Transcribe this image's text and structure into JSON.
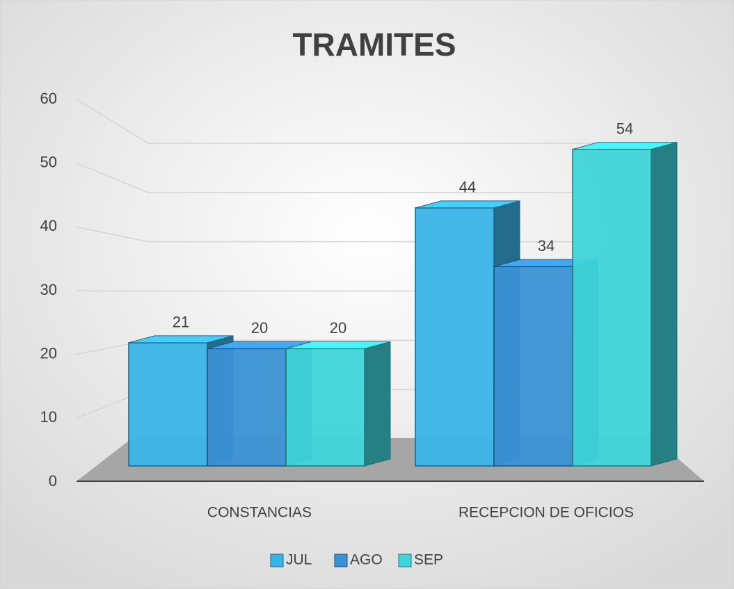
{
  "chart_data": {
    "type": "bar3d",
    "title": "TRAMITES",
    "categories": [
      "CONSTANCIAS",
      "RECEPCION DE OFICIOS"
    ],
    "series": [
      {
        "name": "JUL",
        "color": "#3ab4e8",
        "values": [
          21,
          44
        ]
      },
      {
        "name": "AGO",
        "color": "#3a92d4",
        "values": [
          20,
          34
        ]
      },
      {
        "name": "SEP",
        "color": "#3fd5da",
        "values": [
          20,
          54
        ]
      }
    ],
    "ylim": [
      0,
      60
    ],
    "yticks": [
      0,
      10,
      20,
      30,
      40,
      50,
      60
    ],
    "grid": true,
    "legend": "bottom"
  }
}
